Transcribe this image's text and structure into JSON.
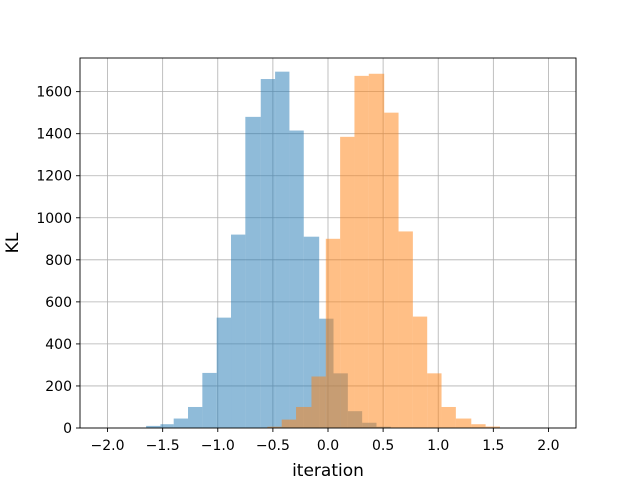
{
  "chart_data": {
    "type": "bar",
    "title": "",
    "xlabel": "iteration",
    "ylabel": "KL",
    "xlim": [
      -2.25,
      2.25
    ],
    "ylim": [
      0,
      1760
    ],
    "xticks": [
      -2.0,
      -1.5,
      -1.0,
      -0.5,
      0.0,
      0.5,
      1.0,
      1.5,
      2.0
    ],
    "xtick_labels": [
      "−2.0",
      "−1.5",
      "−1.0",
      "−0.5",
      "0.0",
      "0.5",
      "1.0",
      "1.5",
      "2.0"
    ],
    "yticks": [
      0,
      200,
      400,
      600,
      800,
      1000,
      1200,
      1400,
      1600
    ],
    "ytick_labels": [
      "0",
      "200",
      "400",
      "600",
      "800",
      "1000",
      "1200",
      "1400",
      "1600"
    ],
    "grid": true,
    "legend": "none",
    "series": [
      {
        "color": "#1f77b4",
        "opacity": 0.5,
        "bins": [
          {
            "x0": -1.65,
            "x1": -1.52,
            "value": 10
          },
          {
            "x0": -1.52,
            "x1": -1.4,
            "value": 18
          },
          {
            "x0": -1.4,
            "x1": -1.27,
            "value": 45
          },
          {
            "x0": -1.27,
            "x1": -1.14,
            "value": 100
          },
          {
            "x0": -1.14,
            "x1": -1.01,
            "value": 262
          },
          {
            "x0": -1.01,
            "x1": -0.88,
            "value": 525
          },
          {
            "x0": -0.88,
            "x1": -0.75,
            "value": 920
          },
          {
            "x0": -0.75,
            "x1": -0.61,
            "value": 1480
          },
          {
            "x0": -0.61,
            "x1": -0.48,
            "value": 1660
          },
          {
            "x0": -0.48,
            "x1": -0.35,
            "value": 1695
          },
          {
            "x0": -0.35,
            "x1": -0.22,
            "value": 1415
          },
          {
            "x0": -0.22,
            "x1": -0.08,
            "value": 910
          },
          {
            "x0": -0.08,
            "x1": 0.05,
            "value": 520
          },
          {
            "x0": 0.05,
            "x1": 0.18,
            "value": 260
          },
          {
            "x0": 0.18,
            "x1": 0.31,
            "value": 80
          },
          {
            "x0": 0.31,
            "x1": 0.44,
            "value": 25
          },
          {
            "x0": 0.44,
            "x1": 0.57,
            "value": 6
          }
        ]
      },
      {
        "color": "#ff7f0e",
        "opacity": 0.5,
        "bins": [
          {
            "x0": -0.55,
            "x1": -0.42,
            "value": 6
          },
          {
            "x0": -0.42,
            "x1": -0.29,
            "value": 40
          },
          {
            "x0": -0.29,
            "x1": -0.15,
            "value": 100
          },
          {
            "x0": -0.15,
            "x1": -0.02,
            "value": 245
          },
          {
            "x0": -0.02,
            "x1": 0.11,
            "value": 900
          },
          {
            "x0": 0.11,
            "x1": 0.24,
            "value": 1385
          },
          {
            "x0": 0.24,
            "x1": 0.37,
            "value": 1675
          },
          {
            "x0": 0.37,
            "x1": 0.51,
            "value": 1685
          },
          {
            "x0": 0.51,
            "x1": 0.64,
            "value": 1500
          },
          {
            "x0": 0.64,
            "x1": 0.77,
            "value": 935
          },
          {
            "x0": 0.77,
            "x1": 0.9,
            "value": 530
          },
          {
            "x0": 0.9,
            "x1": 1.03,
            "value": 260
          },
          {
            "x0": 1.03,
            "x1": 1.16,
            "value": 100
          },
          {
            "x0": 1.16,
            "x1": 1.3,
            "value": 45
          },
          {
            "x0": 1.3,
            "x1": 1.43,
            "value": 18
          },
          {
            "x0": 1.43,
            "x1": 1.56,
            "value": 7
          }
        ]
      }
    ]
  }
}
